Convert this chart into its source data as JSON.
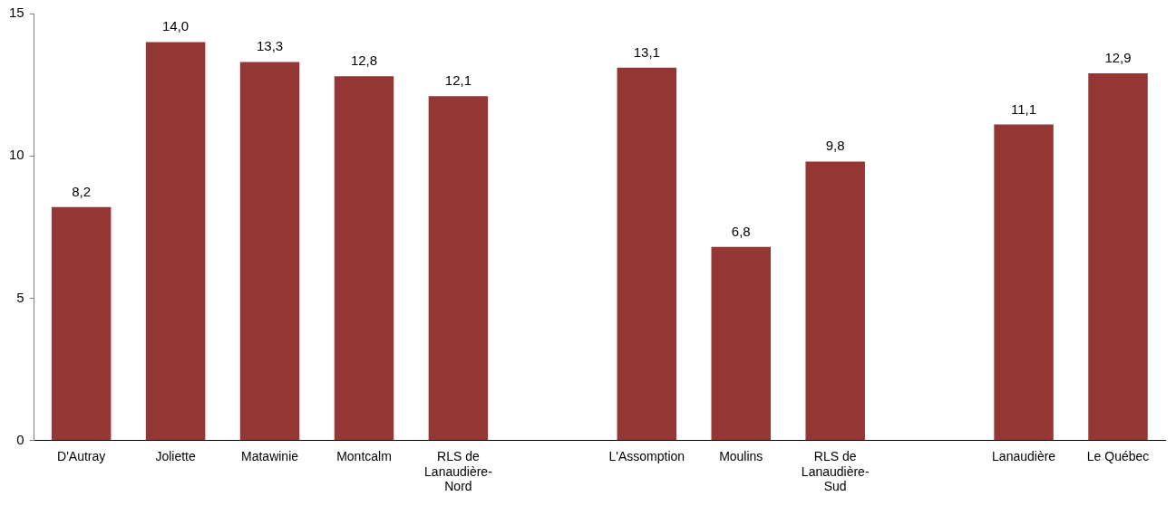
{
  "chart_data": {
    "type": "bar",
    "categories": [
      "D'Autray",
      "Joliette",
      "Matawinie",
      "Montcalm",
      "RLS de Lanaudière-Nord",
      null,
      "L'Assomption",
      "Moulins",
      "RLS de Lanaudière-Sud",
      null,
      "Lanaudière",
      "Le Québec"
    ],
    "values": [
      8.2,
      14.0,
      13.3,
      12.8,
      12.1,
      null,
      13.1,
      6.8,
      9.8,
      null,
      11.1,
      12.9
    ],
    "value_labels": [
      "8,2",
      "14,0",
      "13,3",
      "12,8",
      "12,1",
      null,
      "13,1",
      "6,8",
      "9,8",
      null,
      "11,1",
      "12,9"
    ],
    "color": "#943634",
    "ylim": [
      0,
      15
    ],
    "yticks": [
      0,
      5,
      10,
      15
    ],
    "grid": false,
    "legend": false
  }
}
